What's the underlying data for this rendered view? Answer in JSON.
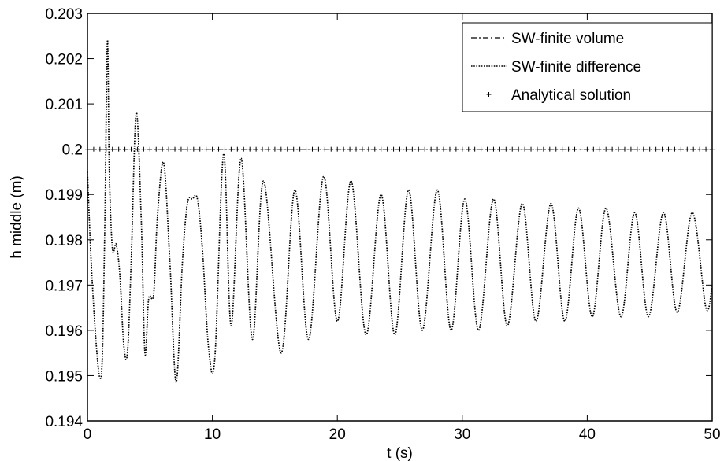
{
  "chart_data": {
    "type": "line",
    "title": "",
    "xlabel": "t (s)",
    "ylabel": "h middle (m)",
    "xlim": [
      0,
      50
    ],
    "ylim": [
      0.194,
      0.203
    ],
    "xticks": [
      0,
      10,
      20,
      30,
      40,
      50
    ],
    "xtick_labels": [
      "0",
      "10",
      "20",
      "30",
      "40",
      "50"
    ],
    "yticks": [
      0.194,
      0.195,
      0.196,
      0.197,
      0.198,
      0.199,
      0.2,
      0.201,
      0.202,
      0.203
    ],
    "ytick_labels": [
      "0.194",
      "0.195",
      "0.196",
      "0.197",
      "0.198",
      "0.199",
      "0.2",
      "0.201",
      "0.202",
      "0.203"
    ],
    "grid": false,
    "legend_position": "top-right",
    "series": [
      {
        "name": "SW-finite volume",
        "style": "dash-dot",
        "color": "#000000",
        "x": [
          0,
          50
        ],
        "y": [
          0.2,
          0.2
        ]
      },
      {
        "name": "SW-finite difference",
        "style": "dotted",
        "color": "#000000",
        "x": [
          0,
          0.3,
          0.7,
          1.0,
          1.2,
          1.4,
          1.6,
          1.75,
          2.0,
          2.3,
          2.6,
          2.9,
          3.2,
          3.5,
          3.9,
          4.3,
          4.6,
          4.9,
          5.3,
          5.6,
          6.1,
          6.6,
          7.1,
          7.6,
          8.0,
          8.4,
          8.8,
          9.2,
          9.7,
          10.2,
          10.9,
          11.5,
          12.3,
          13.2,
          14.1,
          15.5,
          16.6,
          17.7,
          18.9,
          20.0,
          21.1,
          22.3,
          23.5,
          24.6,
          25.7,
          26.8,
          28.0,
          29.1,
          30.2,
          31.3,
          32.5,
          33.6,
          34.8,
          35.9,
          37.1,
          38.2,
          39.3,
          40.4,
          41.5,
          42.7,
          43.8,
          44.9,
          46.1,
          47.2,
          48.4,
          49.5,
          50.0
        ],
        "y": [
          0.1995,
          0.1975,
          0.1957,
          0.19495,
          0.1955,
          0.1985,
          0.2024,
          0.1995,
          0.1978,
          0.1979,
          0.1972,
          0.1957,
          0.1955,
          0.1975,
          0.2008,
          0.1985,
          0.1955,
          0.1967,
          0.1968,
          0.1985,
          0.1997,
          0.1975,
          0.19485,
          0.1975,
          0.1988,
          0.1989,
          0.1989,
          0.1978,
          0.1956,
          0.1954,
          0.1999,
          0.1961,
          0.1998,
          0.1958,
          0.1993,
          0.1955,
          0.1991,
          0.1958,
          0.1994,
          0.1962,
          0.1993,
          0.1959,
          0.199,
          0.1959,
          0.1991,
          0.196,
          0.1991,
          0.196,
          0.1989,
          0.196,
          0.1989,
          0.1961,
          0.1988,
          0.1962,
          0.1988,
          0.1962,
          0.1987,
          0.1963,
          0.1987,
          0.1963,
          0.1986,
          0.1963,
          0.1986,
          0.1964,
          0.1986,
          0.1965,
          0.197
        ]
      },
      {
        "name": "Analytical solution",
        "style": "plus-markers",
        "color": "#000000",
        "x": [
          0,
          0.5,
          1,
          1.5,
          2,
          2.5,
          3,
          3.5,
          4,
          4.5,
          5,
          5.5,
          6,
          6.5,
          7,
          7.5,
          8,
          8.5,
          9,
          9.5,
          10,
          10.5,
          11,
          11.5,
          12,
          12.5,
          13,
          13.5,
          14,
          14.5,
          15,
          15.5,
          16,
          16.5,
          17,
          17.5,
          18,
          18.5,
          19,
          19.5,
          20,
          20.5,
          21,
          21.5,
          22,
          22.5,
          23,
          23.5,
          24,
          24.5,
          25,
          25.5,
          26,
          26.5,
          27,
          27.5,
          28,
          28.5,
          29,
          29.5,
          30,
          30.5,
          31,
          31.5,
          32,
          32.5,
          33,
          33.5,
          34,
          34.5,
          35,
          35.5,
          36,
          36.5,
          37,
          37.5,
          38,
          38.5,
          39,
          39.5,
          40,
          40.5,
          41,
          41.5,
          42,
          42.5,
          43,
          43.5,
          44,
          44.5,
          45,
          45.5,
          46,
          46.5,
          47,
          47.5,
          48,
          48.5,
          49,
          49.5,
          50
        ],
        "y_constant": 0.2
      }
    ]
  }
}
